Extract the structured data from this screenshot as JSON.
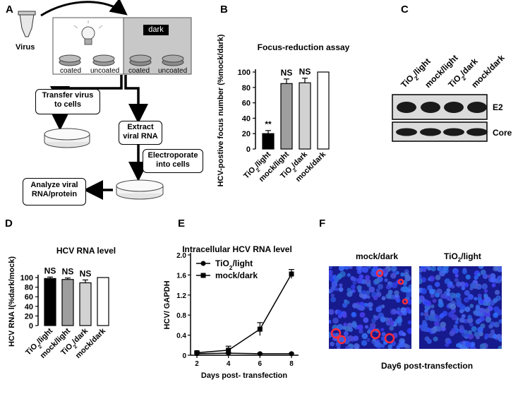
{
  "panels": {
    "A": {
      "letter": "A",
      "virus_label": "Virus",
      "dark_label": "dark",
      "light_dishes": [
        "coated",
        "uncoated"
      ],
      "dark_dishes": [
        "coated",
        "uncoated"
      ],
      "transfer_box": [
        "Transfer virus",
        "to cells"
      ],
      "extract_box": [
        "Extract",
        "viral RNA"
      ],
      "electroporate_box": [
        "Electroporate",
        "into cells"
      ],
      "analyze_box": [
        "Analyze viral",
        "RNA/protein"
      ]
    },
    "B": {
      "letter": "B"
    },
    "C": {
      "letter": "C",
      "lanes": [
        "TiO2/light",
        "mock/light",
        "TiO2/dark",
        "mock/dark"
      ],
      "bands": [
        "E2",
        "Core"
      ]
    },
    "D": {
      "letter": "D"
    },
    "E": {
      "letter": "E"
    },
    "F": {
      "letter": "F",
      "images": [
        "mock/dark",
        "TiO2/light"
      ],
      "caption": "Day6 post-transfection"
    }
  },
  "chart_data": [
    {
      "id": "B",
      "type": "bar",
      "title": "Focus-reduction assay",
      "ylabel": "HCV-postive focus number (%mock/dark)",
      "xlabel": "",
      "categories": [
        "TiO2/light",
        "mock/light",
        "TiO2/dark",
        "mock/dark"
      ],
      "values": [
        20,
        85,
        86,
        100
      ],
      "errors": [
        4,
        6,
        6,
        0
      ],
      "annotations": [
        "**",
        "NS",
        "NS",
        ""
      ],
      "bar_colors": [
        "#000000",
        "#9e9e9e",
        "#d2d2d2",
        "#ffffff"
      ],
      "ylim": [
        0,
        100
      ],
      "yticks": [
        0,
        20,
        40,
        60,
        80,
        100
      ]
    },
    {
      "id": "D",
      "type": "bar",
      "title": "HCV RNA level",
      "ylabel": "HCV RNA l(%dark/mock)",
      "xlabel": "",
      "categories": [
        "TiO2/light",
        "mock/light",
        "TiO2/dark",
        "mock/dark"
      ],
      "values": [
        98,
        96,
        89,
        100
      ],
      "errors": [
        3,
        3,
        6,
        0
      ],
      "annotations": [
        "NS",
        "NS",
        "NS",
        ""
      ],
      "bar_colors": [
        "#000000",
        "#9e9e9e",
        "#d2d2d2",
        "#ffffff"
      ],
      "ylim": [
        0,
        100
      ],
      "yticks": [
        0,
        20,
        40,
        60,
        80,
        100
      ]
    },
    {
      "id": "E",
      "type": "line",
      "title": "Intracellular HCV RNA level",
      "ylabel": "HCV/ GAPDH",
      "xlabel": "Days post- transfection",
      "x": [
        2,
        4,
        6,
        8
      ],
      "ylim": [
        0,
        2.0
      ],
      "yticks": [
        "0",
        "0.4",
        "0.8",
        "1.2",
        "1.6",
        "2.0"
      ],
      "xticks": [
        2,
        4,
        6,
        8
      ],
      "series": [
        {
          "name": "TiO2/light",
          "marker": "circle",
          "values": [
            0.03,
            0.04,
            0.03,
            0.03
          ],
          "errors": [
            0.01,
            0.01,
            0.01,
            0.01
          ]
        },
        {
          "name": "mock/dark",
          "marker": "square",
          "values": [
            0.05,
            0.1,
            0.52,
            1.62
          ],
          "errors": [
            0.02,
            0.08,
            0.13,
            0.09
          ]
        }
      ]
    }
  ]
}
